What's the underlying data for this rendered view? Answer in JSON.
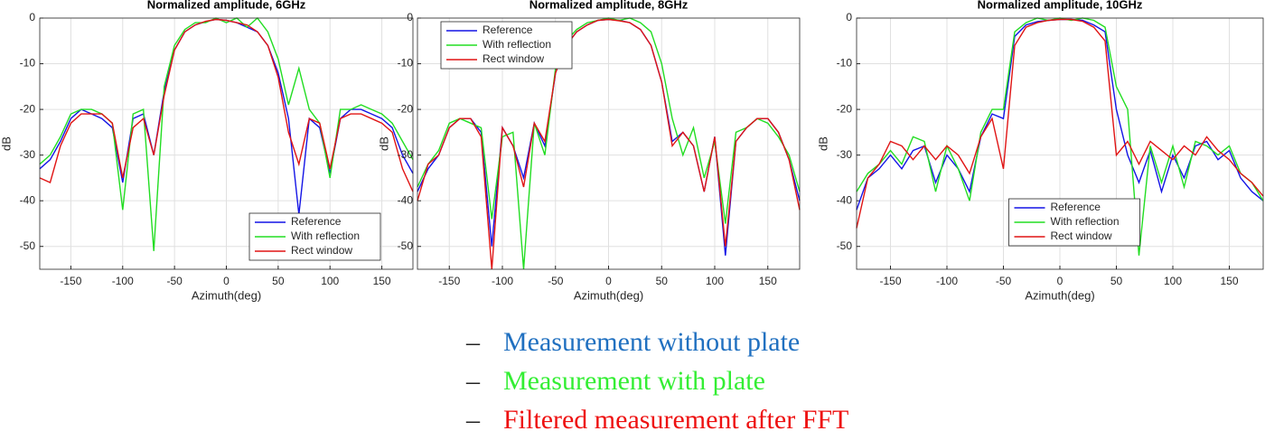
{
  "chart_data": [
    {
      "type": "line",
      "title": "Normalized amplitude, 6GHz",
      "xlabel": "Azimuth(deg)",
      "ylabel": "dB",
      "x": [
        -180,
        -170,
        -160,
        -150,
        -140,
        -130,
        -120,
        -110,
        -100,
        -90,
        -80,
        -70,
        -60,
        -50,
        -40,
        -30,
        -20,
        -10,
        0,
        10,
        20,
        30,
        40,
        50,
        60,
        70,
        80,
        90,
        100,
        110,
        120,
        130,
        140,
        150,
        160,
        170,
        180
      ],
      "series": [
        {
          "name": "Reference",
          "color": "#1414e6",
          "values": [
            -33,
            -31,
            -27,
            -22,
            -20,
            -21,
            -22,
            -24,
            -36,
            -22,
            -21,
            -30,
            -16,
            -7,
            -3,
            -1.5,
            -0.8,
            -0.3,
            -0.5,
            -1,
            -2,
            -3,
            -6,
            -12,
            -22,
            -43,
            -22,
            -24,
            -34,
            -22,
            -20,
            -20,
            -21,
            -22,
            -24,
            -30,
            -34
          ]
        },
        {
          "name": "With reflection",
          "color": "#22dd22",
          "values": [
            -32,
            -30,
            -26,
            -21,
            -20,
            -20,
            -21,
            -23,
            -42,
            -21,
            -20,
            -51,
            -15,
            -6,
            -2.5,
            -1,
            -1,
            0,
            -1,
            0,
            -2,
            0,
            -3,
            -9,
            -19,
            -11,
            -20,
            -23,
            -35,
            -20,
            -20,
            -19,
            -20,
            -21,
            -23,
            -27,
            -31
          ]
        },
        {
          "name": "Rect window",
          "color": "#e01414",
          "values": [
            -35,
            -36,
            -28,
            -23,
            -21,
            -21,
            -21,
            -23,
            -35,
            -24,
            -22,
            -30,
            -17,
            -7,
            -3,
            -1.5,
            -0.7,
            -0.3,
            -0.5,
            -1,
            -1.5,
            -3,
            -6,
            -13,
            -25,
            -32,
            -22,
            -23,
            -33,
            -22,
            -21,
            -21,
            -22,
            -23,
            -25,
            -33,
            -38
          ]
        }
      ],
      "xlim": [
        -180,
        180
      ],
      "xticks": [
        -150,
        -100,
        -50,
        0,
        50,
        100,
        150
      ],
      "ylim": [
        -55,
        0
      ],
      "yticks": [
        0,
        -10,
        -20,
        -30,
        -40,
        -50
      ],
      "grid": true,
      "legend": "lower right"
    },
    {
      "type": "line",
      "title": "Normalized amplitude, 8GHz",
      "xlabel": "Azimuth(deg)",
      "ylabel": "dB",
      "x": [
        -180,
        -170,
        -160,
        -150,
        -140,
        -130,
        -120,
        -110,
        -100,
        -90,
        -80,
        -70,
        -60,
        -50,
        -40,
        -30,
        -20,
        -10,
        0,
        10,
        20,
        30,
        40,
        50,
        60,
        70,
        80,
        90,
        100,
        110,
        120,
        130,
        140,
        150,
        160,
        170,
        180
      ],
      "series": [
        {
          "name": "Reference",
          "color": "#1414e6",
          "values": [
            -38,
            -33,
            -30,
            -24,
            -22,
            -22,
            -25,
            -50,
            -24,
            -28,
            -35,
            -23,
            -28,
            -12,
            -6,
            -3,
            -1.5,
            -0.5,
            -0.3,
            -0.5,
            -1,
            -2.5,
            -6,
            -14,
            -27,
            -25,
            -28,
            -38,
            -26,
            -52,
            -27,
            -24,
            -22,
            -22,
            -25,
            -31,
            -40
          ]
        },
        {
          "name": "With reflection",
          "color": "#22dd22",
          "values": [
            -37,
            -32,
            -29,
            -23,
            -22,
            -23,
            -24,
            -44,
            -26,
            -25,
            -55,
            -23,
            -30,
            -11,
            -5,
            -2.5,
            -1,
            -0.5,
            0,
            -0.5,
            0,
            -1,
            -3,
            -10,
            -22,
            -30,
            -24,
            -35,
            -27,
            -45,
            -25,
            -24,
            -22,
            -23,
            -26,
            -30,
            -38
          ]
        },
        {
          "name": "Rect window",
          "color": "#e01414",
          "values": [
            -40,
            -32,
            -30,
            -24,
            -22,
            -22,
            -26,
            -55,
            -24,
            -28,
            -37,
            -23,
            -27,
            -12,
            -6,
            -3,
            -1.5,
            -0.5,
            -0.3,
            -0.6,
            -1,
            -2.5,
            -6,
            -14,
            -28,
            -25,
            -28,
            -38,
            -26,
            -50,
            -27,
            -24,
            -22,
            -22,
            -25,
            -31,
            -42
          ]
        }
      ],
      "xlim": [
        -180,
        180
      ],
      "xticks": [
        -150,
        -100,
        -50,
        0,
        50,
        100,
        150
      ],
      "ylim": [
        -55,
        0
      ],
      "yticks": [
        0,
        -10,
        -20,
        -30,
        -40,
        -50
      ],
      "grid": true,
      "legend": "upper left"
    },
    {
      "type": "line",
      "title": "Normalized amplitude, 10GHz",
      "xlabel": "Azimuth(deg)",
      "ylabel": "dB",
      "x": [
        -180,
        -170,
        -160,
        -150,
        -140,
        -130,
        -120,
        -110,
        -100,
        -90,
        -80,
        -70,
        -60,
        -50,
        -40,
        -30,
        -20,
        -10,
        0,
        10,
        20,
        30,
        40,
        50,
        60,
        70,
        80,
        90,
        100,
        110,
        120,
        130,
        140,
        150,
        160,
        170,
        180
      ],
      "series": [
        {
          "name": "Reference",
          "color": "#1414e6",
          "values": [
            -42,
            -35,
            -33,
            -30,
            -33,
            -29,
            -28,
            -36,
            -30,
            -33,
            -38,
            -26,
            -21,
            -22,
            -4,
            -1.5,
            -0.8,
            -0.5,
            -0.3,
            -0.3,
            -0.5,
            -1.5,
            -3,
            -20,
            -30,
            -36,
            -29,
            -38,
            -30,
            -35,
            -28,
            -27,
            -31,
            -29,
            -35,
            -38,
            -40
          ]
        },
        {
          "name": "With reflection",
          "color": "#22dd22",
          "values": [
            -38,
            -34,
            -32,
            -29,
            -32,
            -26,
            -27,
            -38,
            -28,
            -33,
            -40,
            -25,
            -20,
            -20,
            -3,
            -1,
            0,
            -0.5,
            0,
            -0.5,
            0,
            -0.5,
            -2,
            -15,
            -20,
            -52,
            -28,
            -36,
            -28,
            -37,
            -27,
            -28,
            -30,
            -28,
            -34,
            -36,
            -40
          ]
        },
        {
          "name": "Rect window",
          "color": "#e01414",
          "values": [
            -46,
            -35,
            -32,
            -27,
            -28,
            -31,
            -28,
            -31,
            -28,
            -30,
            -34,
            -26,
            -22,
            -33,
            -6,
            -2,
            -1,
            -0.5,
            -0.3,
            -0.3,
            -0.7,
            -2,
            -5,
            -30,
            -27,
            -32,
            -27,
            -29,
            -31,
            -28,
            -30,
            -26,
            -29,
            -31,
            -34,
            -36,
            -39
          ]
        }
      ],
      "xlim": [
        -180,
        180
      ],
      "xticks": [
        -150,
        -100,
        -50,
        0,
        50,
        100,
        150
      ],
      "ylim": [
        -55,
        0
      ],
      "yticks": [
        0,
        -10,
        -20,
        -30,
        -40,
        -50
      ],
      "grid": true,
      "legend": "lower center"
    }
  ],
  "captions": [
    {
      "marker": "–",
      "text": "Measurement without plate",
      "color": "#2070c0"
    },
    {
      "marker": "–",
      "text": "Measurement with plate",
      "color": "#33ee33"
    },
    {
      "marker": "–",
      "text": "Filtered measurement after FFT",
      "color": "#ee1111"
    }
  ]
}
